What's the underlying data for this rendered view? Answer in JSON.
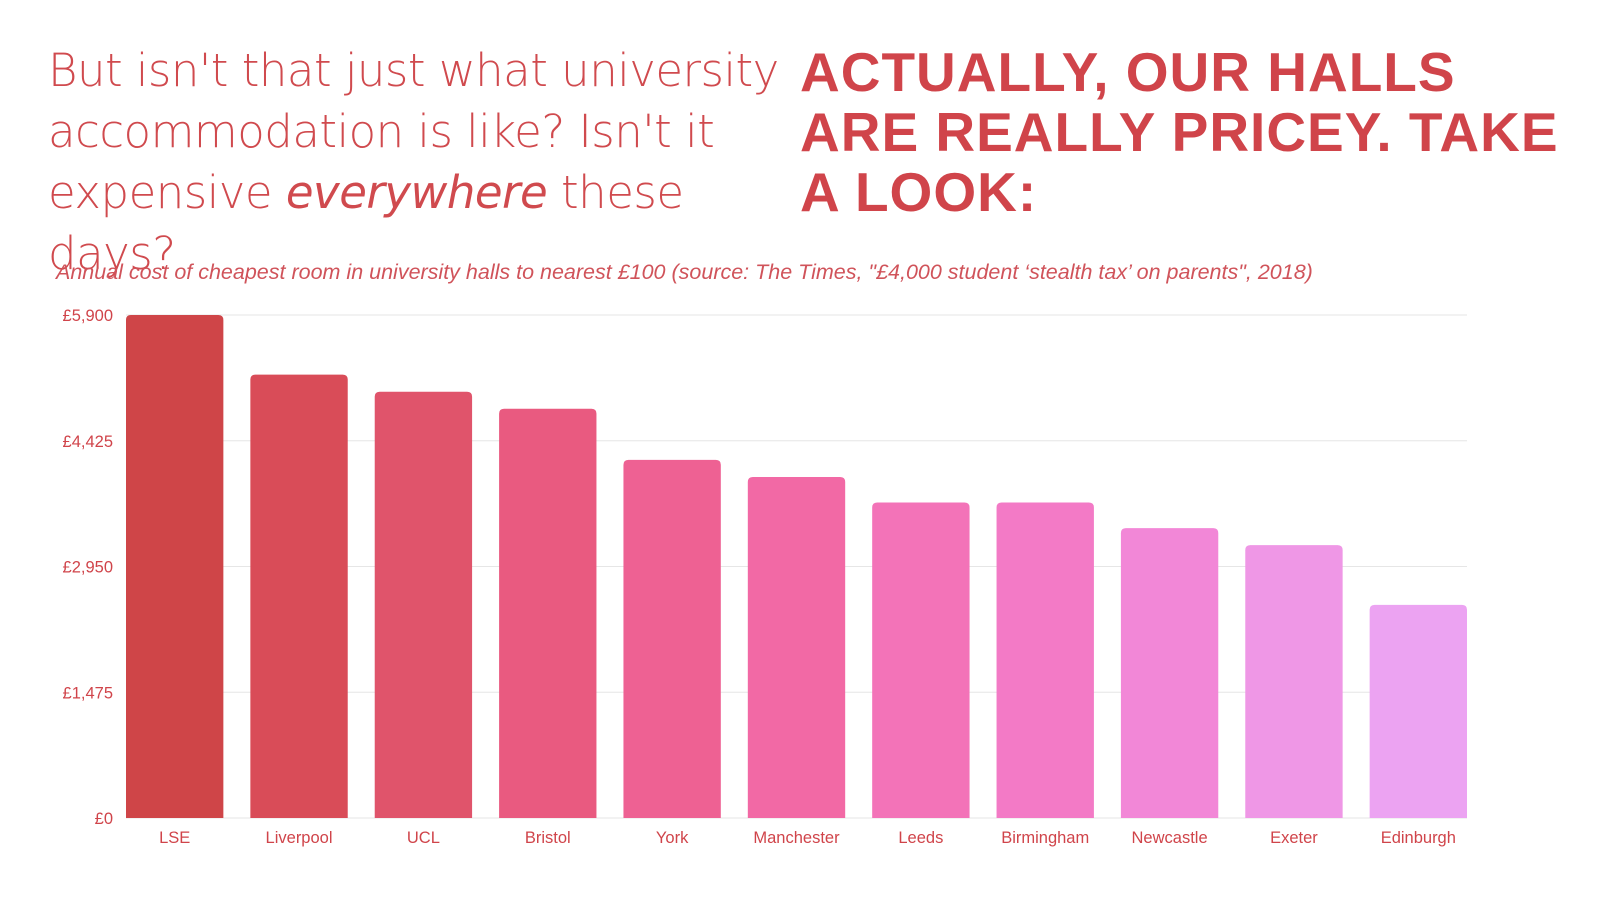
{
  "headline": {
    "left_part1": "But isn't that just what university accommodation is like? Isn't it expensive ",
    "left_emphasis": "everywhere",
    "left_part2": " these days?",
    "right": "ACTUALLY, OUR HALLS ARE REALLY PRICEY. TAKE A LOOK:"
  },
  "colors": {
    "text": "#d0444a",
    "gridline": "#e6e6e6"
  },
  "chart_data": {
    "type": "bar",
    "title": "",
    "subtitle": "Annual cost of cheapest room in university halls to nearest £100 (source: The Times, \"£4,000 student ‘stealth tax’ on parents\", 2018)",
    "xlabel": "",
    "ylabel": "",
    "ylim": [
      0,
      5900
    ],
    "yticks": [
      0,
      1475,
      2950,
      4425,
      5900
    ],
    "ytick_labels": [
      "£0",
      "£1,475",
      "£2,950",
      "£4,425",
      "£5,900"
    ],
    "grid": true,
    "categories": [
      "LSE",
      "Liverpool",
      "UCL",
      "Bristol",
      "York",
      "Manchester",
      "Leeds",
      "Birmingham",
      "Newcastle",
      "Exeter",
      "Edinburgh"
    ],
    "values": [
      5900,
      5200,
      5000,
      4800,
      4200,
      4000,
      3700,
      3700,
      3400,
      3200,
      2500
    ],
    "bar_colors": [
      "#cf4548",
      "#d94c58",
      "#e0546b",
      "#e95a80",
      "#ee6193",
      "#f269a5",
      "#f373b8",
      "#f37ac6",
      "#f287d7",
      "#ef97e6",
      "#eca3f2"
    ]
  }
}
